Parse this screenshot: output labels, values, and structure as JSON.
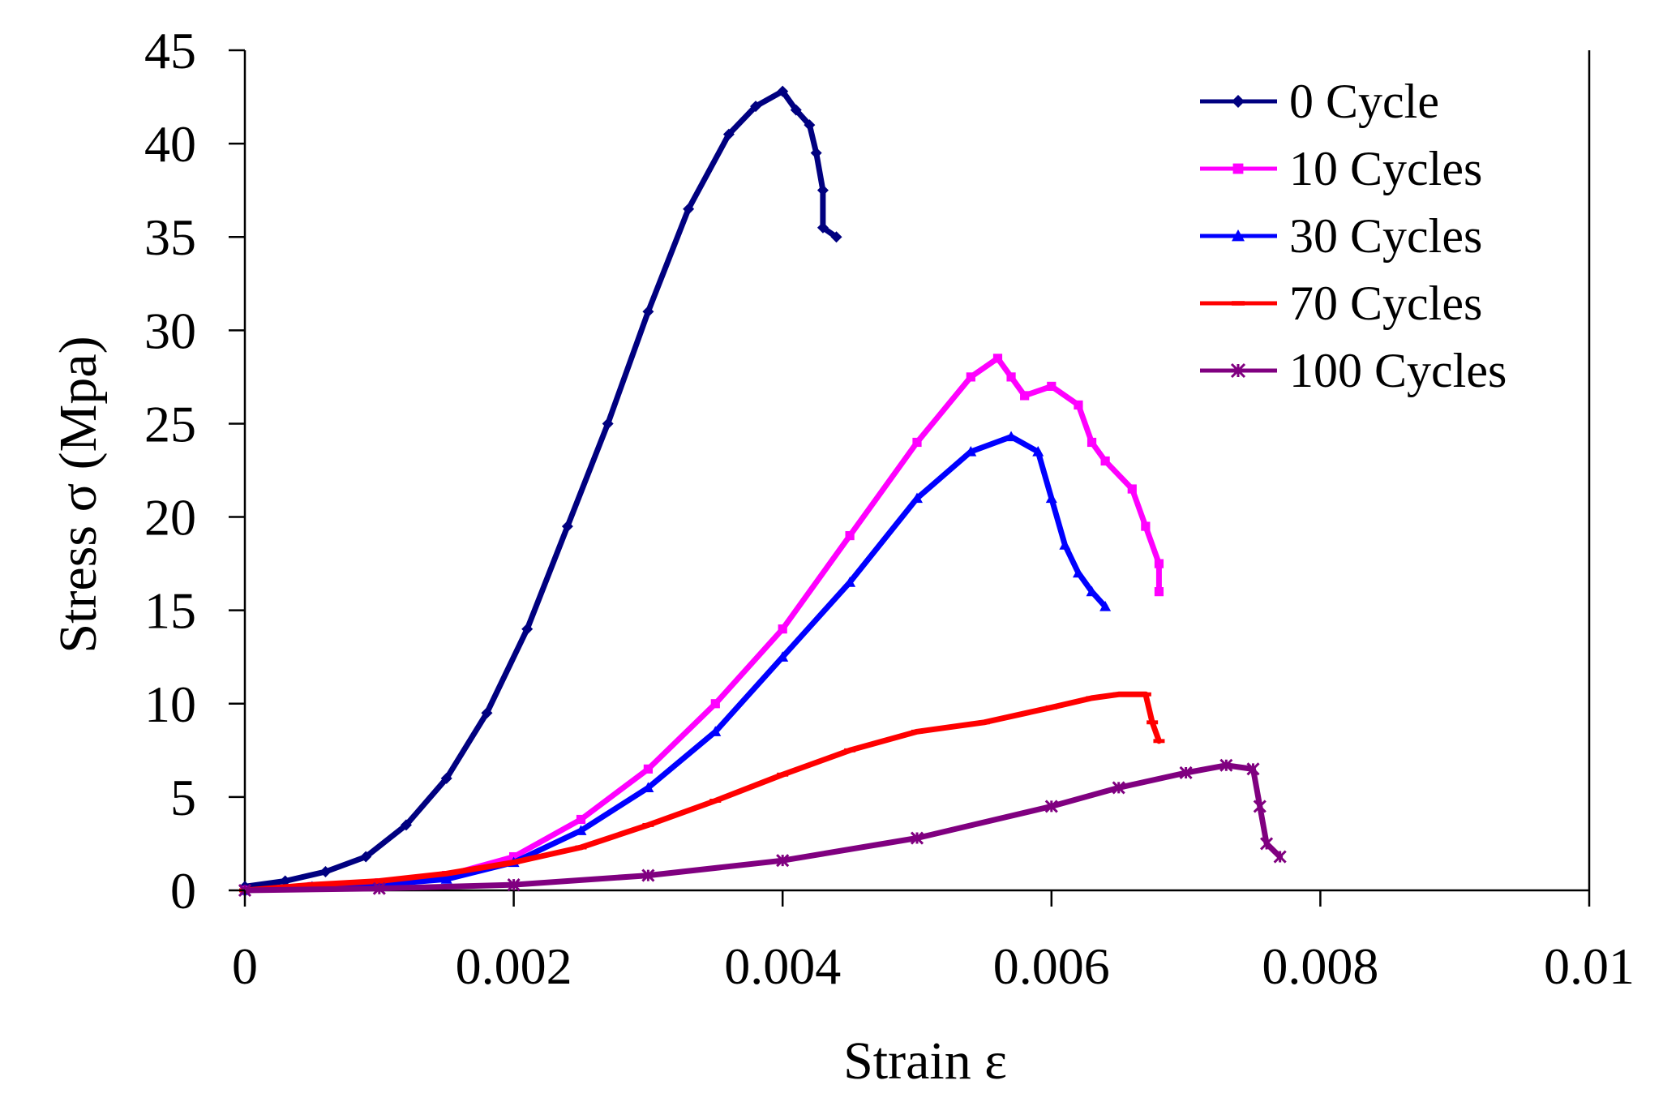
{
  "chart_data": {
    "type": "line",
    "xlabel": "Strain ε",
    "ylabel": "Stress σ  (Mpa)",
    "xlim": [
      0,
      0.01
    ],
    "ylim": [
      0,
      45
    ],
    "x_ticks": [
      0,
      0.002,
      0.004,
      0.006,
      0.008,
      0.01
    ],
    "x_tick_labels": [
      "0",
      "0.002",
      "0.004",
      "0.006",
      "0.008",
      "0.01"
    ],
    "y_ticks": [
      0,
      5,
      10,
      15,
      20,
      25,
      30,
      35,
      40,
      45
    ],
    "y_tick_labels": [
      "0",
      "5",
      "10",
      "15",
      "20",
      "25",
      "30",
      "35",
      "40",
      "45"
    ],
    "grid": false,
    "legend_position": "top-right",
    "series": [
      {
        "name": "0 Cycle",
        "color": "#000080",
        "marker": "diamond",
        "x": [
          0,
          0.0003,
          0.0006,
          0.0009,
          0.0012,
          0.0015,
          0.0018,
          0.0021,
          0.0024,
          0.0027,
          0.003,
          0.0033,
          0.0036,
          0.0038,
          0.004,
          0.0041,
          0.0042,
          0.00425,
          0.0043,
          0.0043,
          0.0044
        ],
        "y": [
          0.2,
          0.5,
          1.0,
          1.8,
          3.5,
          6.0,
          9.5,
          14.0,
          19.5,
          25.0,
          31.0,
          36.5,
          40.5,
          42.0,
          42.8,
          41.8,
          41.0,
          39.5,
          37.5,
          35.5,
          35.0
        ]
      },
      {
        "name": "10 Cycles",
        "color": "#ff00ff",
        "marker": "square",
        "x": [
          0,
          0.0005,
          0.001,
          0.0015,
          0.002,
          0.0025,
          0.003,
          0.0035,
          0.004,
          0.0045,
          0.005,
          0.0054,
          0.0056,
          0.0057,
          0.0058,
          0.006,
          0.0062,
          0.0063,
          0.0064,
          0.0066,
          0.0067,
          0.0068,
          0.0068
        ],
        "y": [
          0,
          0.2,
          0.4,
          0.8,
          1.8,
          3.8,
          6.5,
          10.0,
          14.0,
          19.0,
          24.0,
          27.5,
          28.5,
          27.5,
          26.5,
          27.0,
          26.0,
          24.0,
          23.0,
          21.5,
          19.5,
          17.5,
          16.0
        ]
      },
      {
        "name": "30 Cycles",
        "color": "#0000ff",
        "marker": "triangle",
        "x": [
          0,
          0.0005,
          0.001,
          0.0015,
          0.002,
          0.0025,
          0.003,
          0.0035,
          0.004,
          0.0045,
          0.005,
          0.0054,
          0.0057,
          0.0059,
          0.006,
          0.0061,
          0.0062,
          0.0063,
          0.0064
        ],
        "y": [
          0,
          0.2,
          0.3,
          0.6,
          1.5,
          3.2,
          5.5,
          8.5,
          12.5,
          16.5,
          21.0,
          23.5,
          24.3,
          23.5,
          21.0,
          18.5,
          17.0,
          16.0,
          15.2
        ]
      },
      {
        "name": "70 Cycles",
        "color": "#ff0000",
        "marker": "dash",
        "x": [
          0,
          0.0005,
          0.001,
          0.0015,
          0.002,
          0.0025,
          0.003,
          0.0035,
          0.004,
          0.0045,
          0.005,
          0.0055,
          0.006,
          0.0063,
          0.0065,
          0.0067,
          0.00675,
          0.0068
        ],
        "y": [
          0,
          0.3,
          0.5,
          0.9,
          1.5,
          2.3,
          3.5,
          4.8,
          6.2,
          7.5,
          8.5,
          9.0,
          9.8,
          10.3,
          10.5,
          10.5,
          9.0,
          8.0
        ]
      },
      {
        "name": "100 Cycles",
        "color": "#800080",
        "marker": "asterisk",
        "x": [
          0,
          0.001,
          0.002,
          0.003,
          0.004,
          0.005,
          0.006,
          0.0065,
          0.007,
          0.0073,
          0.0075,
          0.00755,
          0.0076,
          0.0077
        ],
        "y": [
          0,
          0.1,
          0.3,
          0.8,
          1.6,
          2.8,
          4.5,
          5.5,
          6.3,
          6.7,
          6.5,
          4.5,
          2.5,
          1.8
        ]
      }
    ]
  }
}
